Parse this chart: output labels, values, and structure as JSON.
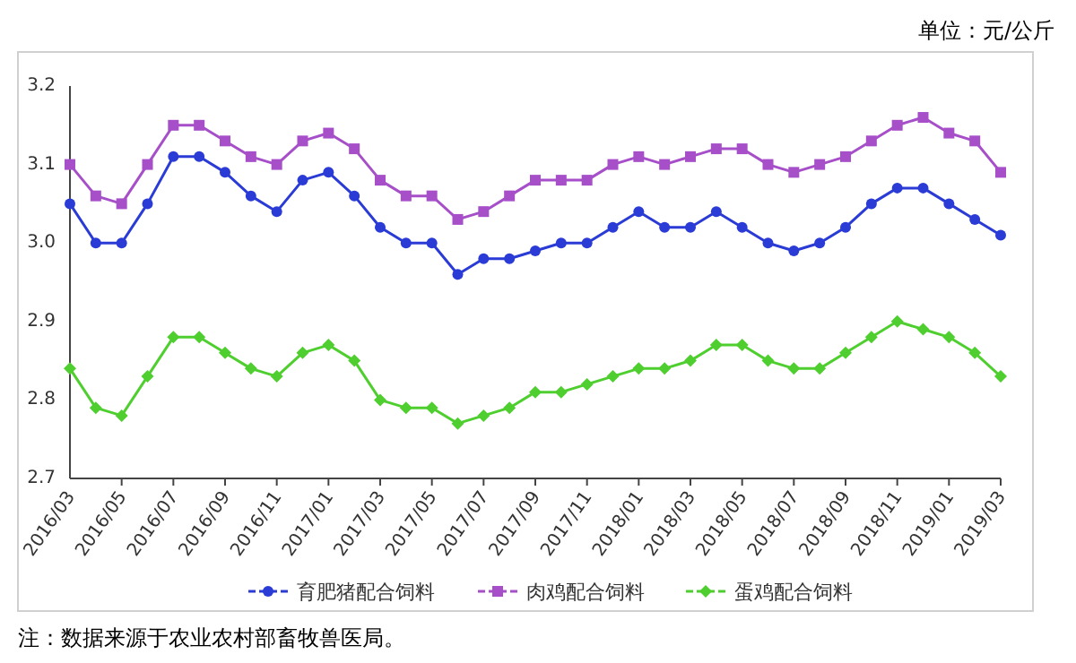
{
  "chart_data": {
    "type": "line",
    "categories": [
      "2016/03",
      null,
      "2016/05",
      null,
      "2016/07",
      null,
      "2016/09",
      null,
      "2016/11",
      null,
      "2017/01",
      null,
      "2017/03",
      null,
      "2017/05",
      null,
      "2017/07",
      null,
      "2017/09",
      null,
      "2017/11",
      null,
      "2018/01",
      null,
      "2018/03",
      null,
      "2018/05",
      null,
      "2018/07",
      null,
      "2018/09",
      null,
      "2018/11",
      null,
      "2019/01",
      null,
      "2019/03"
    ],
    "series": [
      {
        "name": "育肥猪配合饲料",
        "color": "#2a3bd6",
        "marker": "circle",
        "values": [
          3.05,
          3.0,
          3.0,
          3.05,
          3.11,
          3.11,
          3.09,
          3.06,
          3.04,
          3.08,
          3.09,
          3.06,
          3.02,
          3.0,
          3.0,
          2.96,
          2.98,
          2.98,
          2.99,
          3.0,
          3.0,
          3.02,
          3.04,
          3.02,
          3.02,
          3.04,
          3.02,
          3.0,
          2.99,
          3.0,
          3.02,
          3.05,
          3.07,
          3.07,
          3.05,
          3.03,
          3.01
        ]
      },
      {
        "name": "肉鸡配合饲料",
        "color": "#a64fc9",
        "marker": "square",
        "values": [
          3.1,
          3.06,
          3.05,
          3.1,
          3.15,
          3.15,
          3.13,
          3.11,
          3.1,
          3.13,
          3.14,
          3.12,
          3.08,
          3.06,
          3.06,
          3.03,
          3.04,
          3.06,
          3.08,
          3.08,
          3.08,
          3.1,
          3.11,
          3.1,
          3.11,
          3.12,
          3.12,
          3.1,
          3.09,
          3.1,
          3.11,
          3.13,
          3.15,
          3.16,
          3.14,
          3.13,
          3.09
        ]
      },
      {
        "name": "蛋鸡配合饲料",
        "color": "#4fcf2f",
        "marker": "diamond",
        "values": [
          2.84,
          2.79,
          2.78,
          2.83,
          2.88,
          2.88,
          2.86,
          2.84,
          2.83,
          2.86,
          2.87,
          2.85,
          2.8,
          2.79,
          2.79,
          2.77,
          2.78,
          2.79,
          2.81,
          2.81,
          2.82,
          2.83,
          2.84,
          2.84,
          2.85,
          2.87,
          2.87,
          2.85,
          2.84,
          2.84,
          2.86,
          2.88,
          2.9,
          2.89,
          2.88,
          2.86,
          2.83
        ]
      }
    ],
    "ylim": [
      2.7,
      3.2
    ],
    "yticks": [
      2.7,
      2.8,
      2.9,
      {
        "value": 3,
        "label": "3.0"
      },
      3.1,
      3.2
    ],
    "legend": "bottom",
    "grid": false,
    "annotations": [
      "单位：元/公斤",
      "注：数据来源于农业农村部畜牧兽医局。"
    ]
  }
}
